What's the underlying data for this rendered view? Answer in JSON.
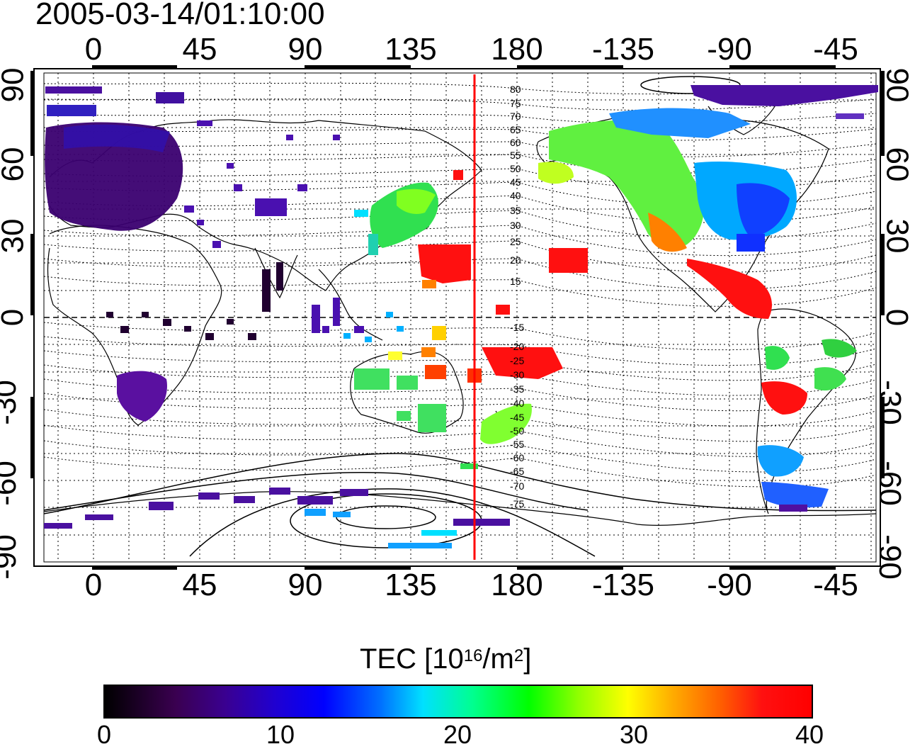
{
  "title": "2005-03-14/01:10:00",
  "lon_ticks": [
    "0",
    "45",
    "90",
    "135",
    "180",
    "-135",
    "-90",
    "-45"
  ],
  "lat_ticks": [
    "90",
    "60",
    "30",
    "0",
    "-30",
    "-60",
    "-90"
  ],
  "contour_labels_north": [
    "80",
    "75",
    "70",
    "65",
    "60",
    "55",
    "50",
    "45",
    "40",
    "35",
    "30",
    "25",
    "20",
    "15"
  ],
  "contour_labels_south": [
    "-15",
    "-20",
    "-25",
    "-30",
    "-35",
    "-40",
    "-45",
    "-50",
    "-55",
    "-60",
    "-65",
    "-70",
    "-75"
  ],
  "colorbar": {
    "title_main": "TEC  [10",
    "title_sup1": "16",
    "title_mid": "/m",
    "title_sup2": "2",
    "title_end": "]",
    "ticks": [
      "0",
      "10",
      "20",
      "30",
      "40"
    ],
    "range": [
      0,
      40
    ]
  },
  "colors": {
    "terminator": "#ff0000",
    "low": "#3a0070",
    "high": "#ff0000"
  }
}
